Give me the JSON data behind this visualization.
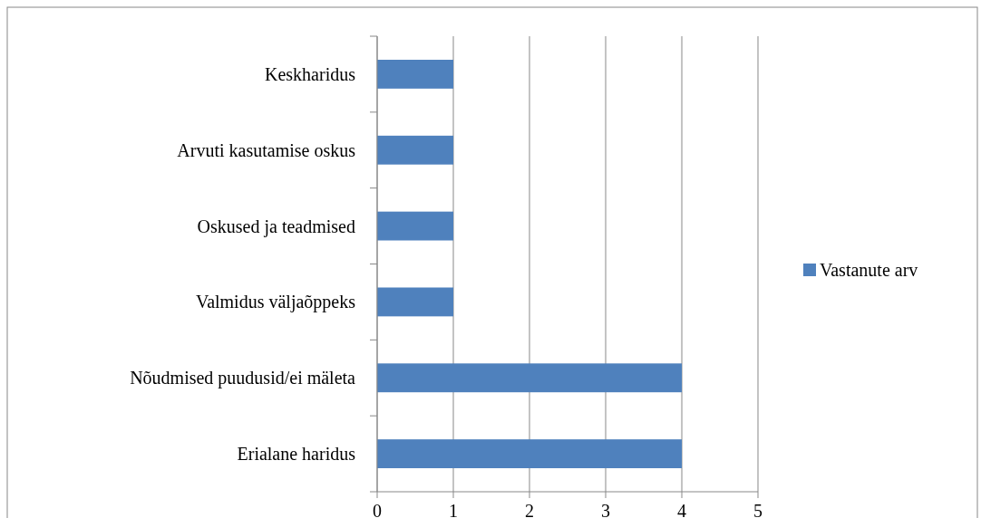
{
  "chart_data": {
    "type": "bar",
    "orientation": "horizontal",
    "categories": [
      "Keskharidus",
      "Arvuti kasutamise oskus",
      "Oskused ja teadmised",
      "Valmidus väljaõppeks",
      "Nõudmised puudusid/ei mäleta",
      "Erialane haridus"
    ],
    "series": [
      {
        "name": "Vastanute arv",
        "color": "#4f81bd",
        "values": [
          1,
          1,
          1,
          1,
          4,
          4
        ]
      }
    ],
    "xlim": [
      0,
      5
    ],
    "xticks": [
      0,
      1,
      2,
      3,
      4,
      5
    ],
    "grid": "x",
    "legend": "right"
  }
}
